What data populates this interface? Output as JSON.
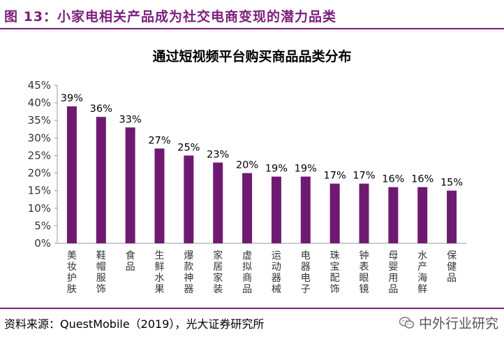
{
  "figure": {
    "title": "图 13：小家电相关产品成为社交电商变现的潜力品类"
  },
  "chart_data": {
    "type": "bar",
    "title": "通过短视频平台购买商品品类分布",
    "categories": [
      "美妆护肤",
      "鞋帽服饰",
      "食品",
      "生鲜水果",
      "爆款神器",
      "家居家装",
      "虚拟商品",
      "运动器械",
      "电器电子",
      "珠宝配饰",
      "钟表眼镜",
      "母婴用品",
      "水产海鲜",
      "保健品"
    ],
    "values": [
      39,
      36,
      33,
      27,
      25,
      23,
      20,
      19,
      19,
      17,
      17,
      16,
      16,
      15
    ],
    "value_labels": [
      "39%",
      "36%",
      "33%",
      "27%",
      "25%",
      "23%",
      "20%",
      "19%",
      "19%",
      "17%",
      "17%",
      "16%",
      "16%",
      "15%"
    ],
    "yticks": [
      "0%",
      "5%",
      "10%",
      "15%",
      "20%",
      "25%",
      "30%",
      "35%",
      "40%",
      "45%"
    ],
    "ylim": [
      0,
      45
    ],
    "bar_color": "#6e1a72",
    "xlabel": "",
    "ylabel": ""
  },
  "source": "资料来源：QuestMobile（2019），光大证券研究所",
  "watermark": {
    "text": "中外行业研究",
    "icon": "wechat-icon"
  }
}
